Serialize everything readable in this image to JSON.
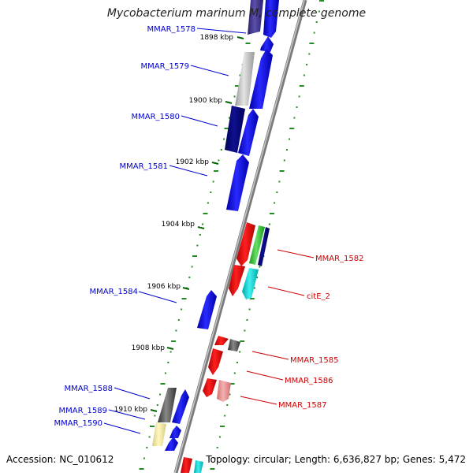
{
  "title": "Mycobacterium marinum M, complete genome",
  "accession": "Accession: NC_010612",
  "summary": "Topology: circular; Length: 6,636,827 bp; Genes: 5,472",
  "tick_labels": [
    "1898 kbp",
    "1900 kbp",
    "1902 kbp",
    "1904 kbp",
    "1906 kbp",
    "1908 kbp",
    "1910 kbp"
  ],
  "genes": [
    {
      "id": "MMAR_1578",
      "strand": "forward",
      "color": "#0000cc"
    },
    {
      "id": "MMAR_1579",
      "strand": "forward",
      "color": "#0000cc"
    },
    {
      "id": "MMAR_1580",
      "strand": "forward",
      "color": "#0000cc"
    },
    {
      "id": "MMAR_1581",
      "strand": "forward",
      "color": "#0000cc"
    },
    {
      "id": "MMAR_1582",
      "strand": "reverse",
      "color": "#cc0000"
    },
    {
      "id": "citE_2",
      "strand": "reverse",
      "color": "#cc0000"
    },
    {
      "id": "MMAR_1584",
      "strand": "forward",
      "color": "#0000cc"
    },
    {
      "id": "MMAR_1585",
      "strand": "reverse",
      "color": "#cc0000"
    },
    {
      "id": "MMAR_1586",
      "strand": "reverse",
      "color": "#cc0000"
    },
    {
      "id": "MMAR_1587",
      "strand": "reverse",
      "color": "#cc0000"
    },
    {
      "id": "MMAR_1588",
      "strand": "forward",
      "color": "#0000cc"
    },
    {
      "id": "MMAR_1589",
      "strand": "forward",
      "color": "#0000cc"
    },
    {
      "id": "MMAR_1590",
      "strand": "forward",
      "color": "#0000cc"
    }
  ],
  "colors": {
    "forward_label": "#0000cc",
    "reverse_label": "#cc0000",
    "backbone": "#888888",
    "dotted_track": "#228B22"
  }
}
